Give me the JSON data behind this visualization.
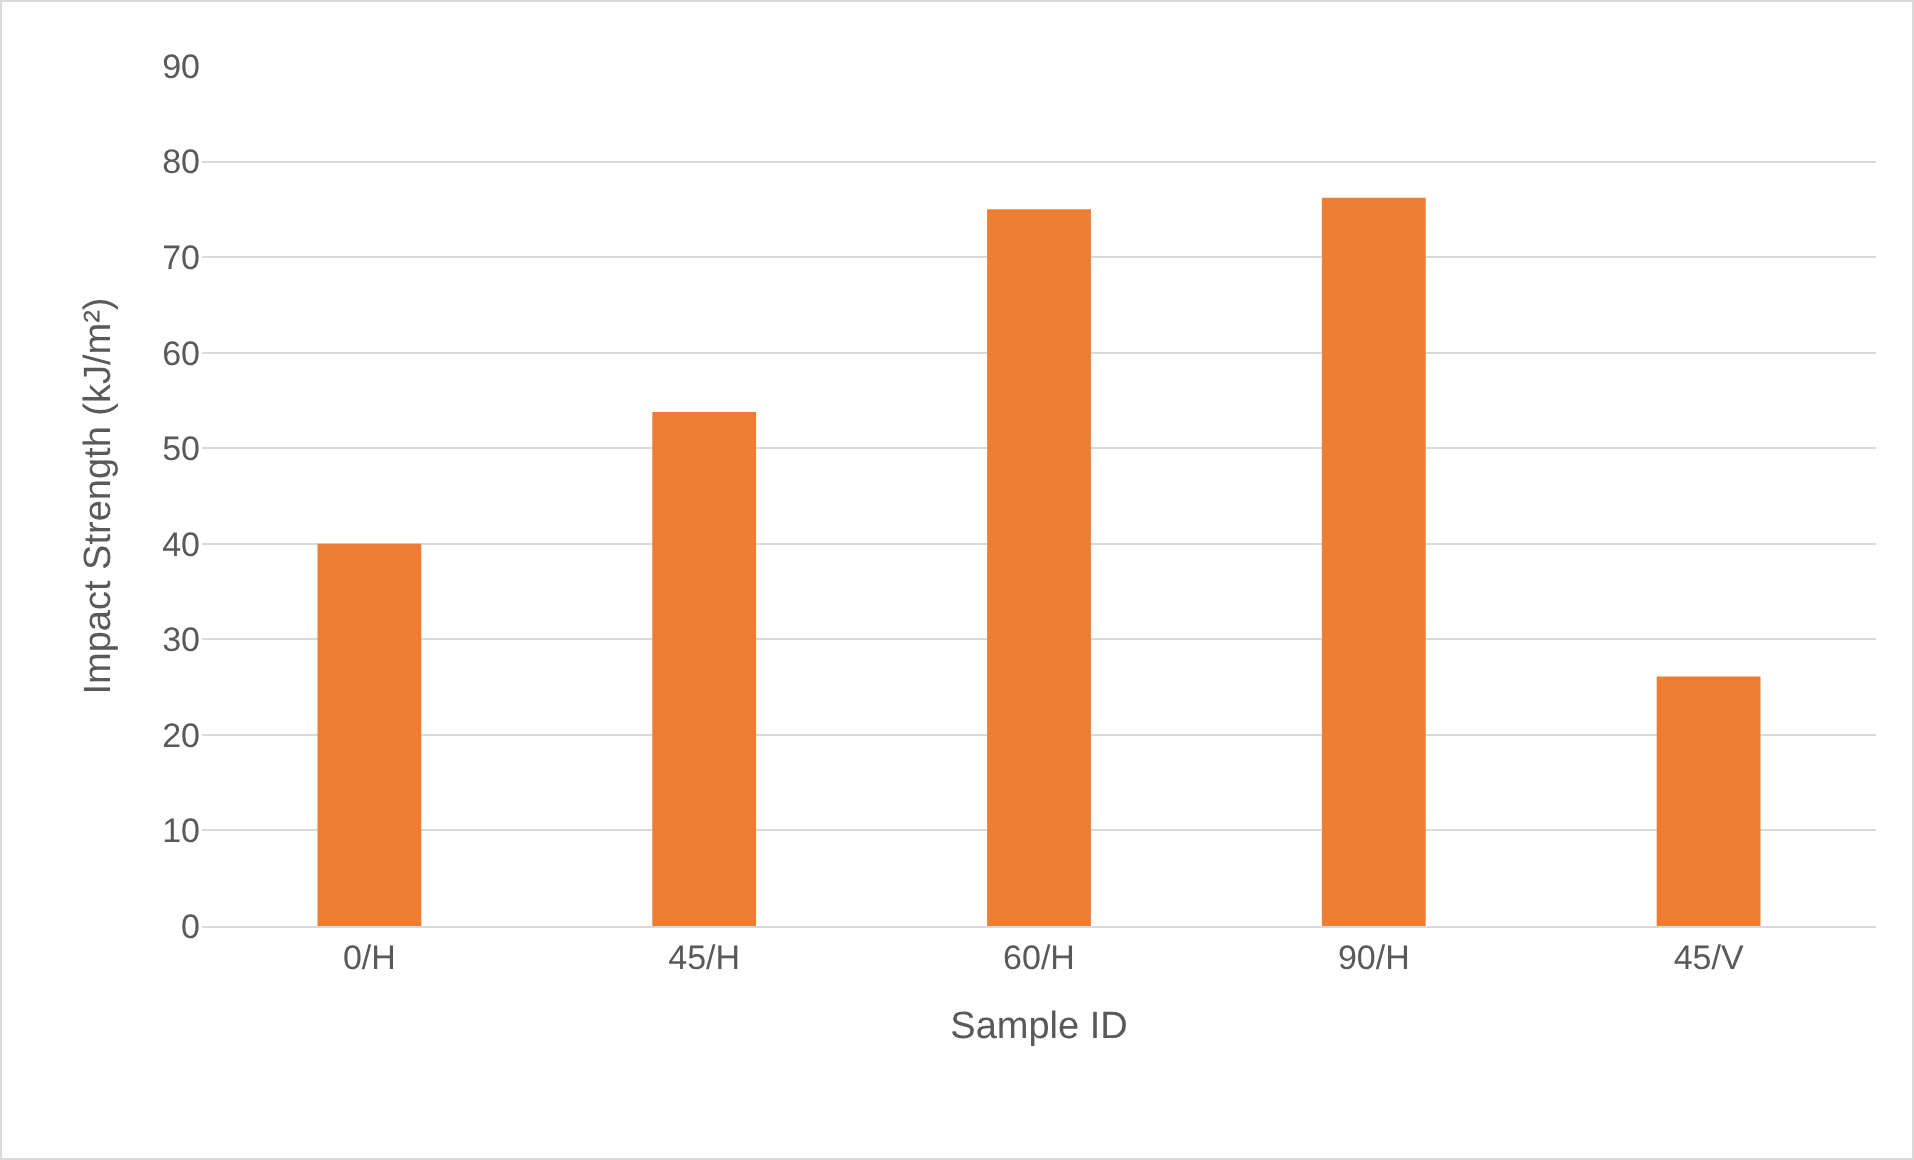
{
  "chart_data": {
    "type": "bar",
    "xlabel": "Sample ID",
    "ylabel": "Impact Strength (kJ/m²)",
    "categories": [
      "0/H",
      "45/H",
      "60/H",
      "90/H",
      "45/V"
    ],
    "values": [
      40,
      53.8,
      75,
      76.2,
      26.1
    ],
    "color": "#ed7d31",
    "ylim": [
      0,
      90
    ],
    "yticks": [
      0,
      10,
      20,
      30,
      40,
      50,
      60,
      70,
      80,
      90
    ],
    "grid": "y"
  }
}
